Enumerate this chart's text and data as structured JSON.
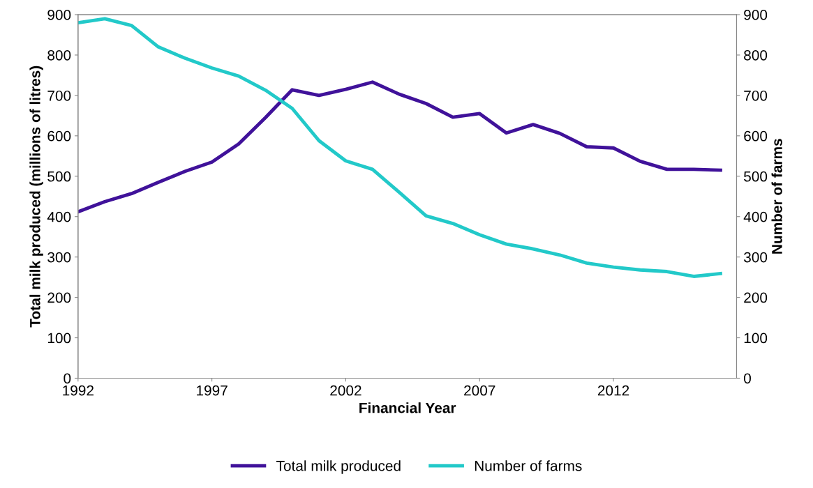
{
  "chart_data": {
    "type": "line",
    "xlabel": "Financial Year",
    "ylabel": "Total milk produced (millions of litres)",
    "y2label": "Number of farms",
    "x": [
      1992,
      1993,
      1994,
      1995,
      1996,
      1997,
      1998,
      1999,
      2000,
      2001,
      2002,
      2003,
      2004,
      2005,
      2006,
      2007,
      2008,
      2009,
      2010,
      2011,
      2012,
      2013,
      2014,
      2015,
      2016
    ],
    "series": [
      {
        "name": "Total milk produced",
        "color": "#40129a",
        "values": [
          412,
          437,
          457,
          485,
          512,
          535,
          580,
          645,
          714,
          700,
          715,
          733,
          703,
          680,
          646,
          655,
          607,
          628,
          606,
          573,
          570,
          537,
          517,
          517,
          515
        ]
      },
      {
        "name": "Number of farms",
        "color": "#22c9c9",
        "axis": "y2",
        "values": [
          880,
          890,
          873,
          820,
          792,
          768,
          748,
          713,
          668,
          588,
          538,
          517,
          460,
          402,
          383,
          355,
          332,
          320,
          305,
          285,
          275,
          268,
          264,
          252,
          259
        ]
      }
    ],
    "xlim": [
      1992,
      2016.6
    ],
    "xticks": [
      1992,
      1997,
      2002,
      2007,
      2012
    ],
    "ylim": [
      0,
      900
    ],
    "yticks": [
      0,
      100,
      200,
      300,
      400,
      500,
      600,
      700,
      800,
      900
    ],
    "y2lim": [
      0,
      900
    ],
    "y2ticks": [
      0,
      100,
      200,
      300,
      400,
      500,
      600,
      700,
      800,
      900
    ],
    "grid": false,
    "legend": "bottom",
    "marker": "none",
    "line_style": "solid"
  }
}
